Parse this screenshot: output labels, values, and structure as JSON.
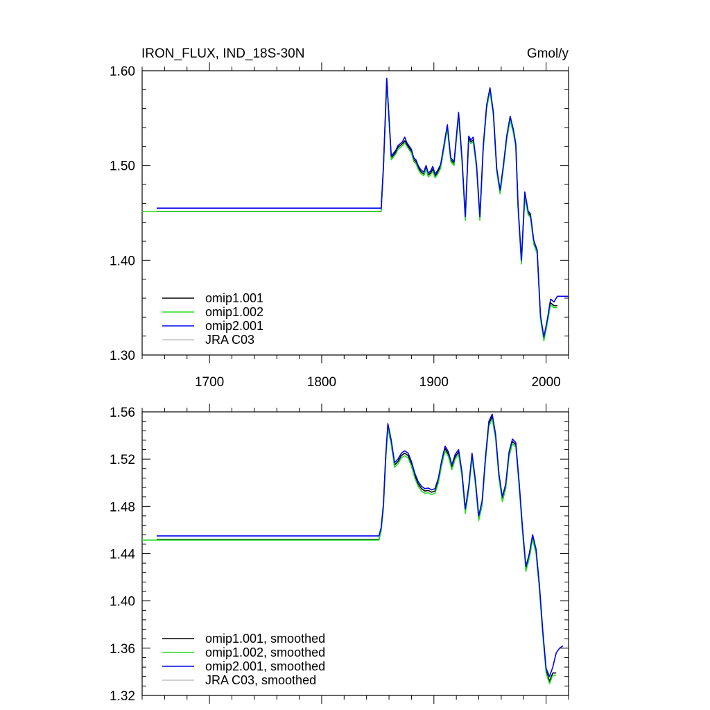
{
  "title_left": "IRON_FLUX, IND_18S-30N",
  "title_right": "Gmol/y",
  "colors": {
    "omip1_001": "#000000",
    "omip1_002": "#22dd22",
    "omip2_001": "#0000ee",
    "jra_c03": "#c0c0c0"
  },
  "chart_data": [
    {
      "type": "line",
      "xlim": [
        1640,
        2020
      ],
      "ylim": [
        1.3,
        1.6
      ],
      "x_ticks": [
        "1700",
        "1800",
        "1900",
        "2000"
      ],
      "y_ticks": [
        "1.30",
        "1.40",
        "1.50",
        "1.60"
      ],
      "legend_placement": "bottom-left",
      "series": [
        {
          "name": "omip1.001",
          "color_key": "omip1_001",
          "x": [
            1653,
            1853,
            1855,
            1858,
            1862,
            1866,
            1868,
            1872,
            1874,
            1876,
            1880,
            1882,
            1884,
            1886,
            1888,
            1891,
            1893,
            1895,
            1897,
            1899,
            1901,
            1903,
            1906,
            1909,
            1912,
            1915,
            1918,
            1922,
            1925,
            1928,
            1931,
            1933,
            1935,
            1938,
            1941,
            1944,
            1947,
            1950,
            1953,
            1956,
            1959,
            1962,
            1965,
            1968,
            1971,
            1973,
            1975,
            1978,
            1981,
            1984,
            1986,
            1989,
            1992,
            1995,
            1998,
            2001,
            2004,
            2007,
            2010
          ],
          "y": [
            1.4515,
            1.4515,
            1.497,
            1.59,
            1.508,
            1.514,
            1.519,
            1.523,
            1.526,
            1.522,
            1.515,
            1.506,
            1.504,
            1.498,
            1.494,
            1.491,
            1.498,
            1.49,
            1.492,
            1.496,
            1.489,
            1.492,
            1.499,
            1.52,
            1.541,
            1.506,
            1.502,
            1.554,
            1.506,
            1.444,
            1.529,
            1.525,
            1.527,
            1.499,
            1.444,
            1.519,
            1.562,
            1.58,
            1.554,
            1.495,
            1.472,
            1.499,
            1.53,
            1.55,
            1.535,
            1.521,
            1.456,
            1.398,
            1.468,
            1.45,
            1.447,
            1.419,
            1.409,
            1.34,
            1.317,
            1.335,
            1.355,
            1.352,
            1.352
          ]
        },
        {
          "name": "omip1.002",
          "color_key": "omip1_002",
          "x": [
            1640,
            1853,
            1855,
            1858,
            1862,
            1866,
            1868,
            1872,
            1874,
            1876,
            1880,
            1882,
            1884,
            1886,
            1888,
            1891,
            1893,
            1895,
            1897,
            1899,
            1901,
            1903,
            1906,
            1909,
            1912,
            1915,
            1918,
            1922,
            1925,
            1928,
            1931,
            1933,
            1935,
            1938,
            1941,
            1944,
            1947,
            1950,
            1953,
            1956,
            1959,
            1962,
            1965,
            1968,
            1971,
            1973,
            1975,
            1978,
            1981,
            1984,
            1986,
            1989,
            1992,
            1995,
            1998,
            2001,
            2004,
            2007,
            2010
          ],
          "y": [
            1.4515,
            1.4515,
            1.496,
            1.588,
            1.506,
            1.512,
            1.517,
            1.521,
            1.524,
            1.52,
            1.513,
            1.504,
            1.502,
            1.496,
            1.492,
            1.489,
            1.496,
            1.488,
            1.49,
            1.494,
            1.487,
            1.49,
            1.497,
            1.518,
            1.539,
            1.504,
            1.5,
            1.552,
            1.504,
            1.442,
            1.527,
            1.523,
            1.525,
            1.497,
            1.442,
            1.517,
            1.56,
            1.578,
            1.552,
            1.493,
            1.47,
            1.497,
            1.528,
            1.548,
            1.533,
            1.519,
            1.454,
            1.396,
            1.466,
            1.448,
            1.445,
            1.417,
            1.407,
            1.338,
            1.315,
            1.333,
            1.353,
            1.35,
            1.35
          ]
        },
        {
          "name": "omip2.001",
          "color_key": "omip2_001",
          "x": [
            1653,
            1853,
            1855,
            1858,
            1862,
            1866,
            1868,
            1872,
            1874,
            1876,
            1880,
            1882,
            1884,
            1886,
            1888,
            1891,
            1893,
            1895,
            1897,
            1899,
            1901,
            1903,
            1906,
            1909,
            1912,
            1915,
            1918,
            1922,
            1925,
            1928,
            1931,
            1933,
            1935,
            1938,
            1941,
            1944,
            1947,
            1950,
            1953,
            1956,
            1959,
            1962,
            1965,
            1968,
            1971,
            1973,
            1975,
            1978,
            1981,
            1984,
            1986,
            1989,
            1992,
            1995,
            1998,
            2001,
            2004,
            2007,
            2010,
            2012,
            2020
          ],
          "y": [
            1.455,
            1.455,
            1.499,
            1.592,
            1.51,
            1.516,
            1.521,
            1.525,
            1.53,
            1.524,
            1.517,
            1.508,
            1.506,
            1.5,
            1.496,
            1.493,
            1.5,
            1.492,
            1.494,
            1.499,
            1.491,
            1.494,
            1.501,
            1.522,
            1.543,
            1.508,
            1.504,
            1.556,
            1.508,
            1.446,
            1.531,
            1.527,
            1.53,
            1.501,
            1.446,
            1.521,
            1.564,
            1.582,
            1.556,
            1.497,
            1.474,
            1.501,
            1.532,
            1.552,
            1.537,
            1.523,
            1.458,
            1.4,
            1.472,
            1.452,
            1.449,
            1.421,
            1.411,
            1.342,
            1.319,
            1.337,
            1.359,
            1.356,
            1.362,
            1.362,
            1.362
          ]
        },
        {
          "name": "JRA C03",
          "color_key": "jra_c03",
          "x": [],
          "y": []
        }
      ]
    },
    {
      "type": "line",
      "xlim": [
        1640,
        2020
      ],
      "ylim": [
        1.32,
        1.56
      ],
      "x_ticks": [],
      "y_ticks": [
        "1.32",
        "1.36",
        "1.40",
        "1.44",
        "1.48",
        "1.52",
        "1.56"
      ],
      "legend_placement": "bottom-left",
      "series": [
        {
          "name": "omip1.001, smoothed",
          "color_key": "omip1_001",
          "x": [
            1653,
            1851,
            1853,
            1855,
            1857,
            1859,
            1862,
            1865,
            1868,
            1871,
            1874,
            1877,
            1880,
            1883,
            1886,
            1889,
            1892,
            1895,
            1898,
            1901,
            1904,
            1907,
            1910,
            1913,
            1916,
            1919,
            1922,
            1925,
            1928,
            1931,
            1934,
            1937,
            1940,
            1943,
            1946,
            1949,
            1952,
            1955,
            1958,
            1961,
            1964,
            1967,
            1970,
            1973,
            1976,
            1979,
            1982,
            1985,
            1988,
            1991,
            1994,
            1997,
            2000,
            2003,
            2006,
            2009
          ],
          "y": [
            1.452,
            1.452,
            1.46,
            1.48,
            1.52,
            1.548,
            1.534,
            1.515,
            1.518,
            1.523,
            1.525,
            1.523,
            1.516,
            1.506,
            1.499,
            1.495,
            1.493,
            1.4935,
            1.492,
            1.493,
            1.502,
            1.517,
            1.529,
            1.524,
            1.513,
            1.522,
            1.526,
            1.507,
            1.476,
            1.495,
            1.523,
            1.5,
            1.47,
            1.483,
            1.52,
            1.55,
            1.556,
            1.539,
            1.505,
            1.486,
            1.497,
            1.524,
            1.535,
            1.532,
            1.498,
            1.46,
            1.427,
            1.438,
            1.454,
            1.442,
            1.412,
            1.373,
            1.341,
            1.332,
            1.339,
            1.339
          ]
        },
        {
          "name": "omip1.002, smoothed",
          "color_key": "omip1_002",
          "x": [
            1640,
            1851,
            1853,
            1855,
            1857,
            1859,
            1862,
            1865,
            1868,
            1871,
            1874,
            1877,
            1880,
            1883,
            1886,
            1889,
            1892,
            1895,
            1898,
            1901,
            1904,
            1907,
            1910,
            1913,
            1916,
            1919,
            1922,
            1925,
            1928,
            1931,
            1934,
            1937,
            1940,
            1943,
            1946,
            1949,
            1952,
            1955,
            1958,
            1961,
            1964,
            1967,
            1970,
            1973,
            1976,
            1979,
            1982,
            1985,
            1988,
            1991,
            1994,
            1997,
            2000,
            2003,
            2006,
            2009
          ],
          "y": [
            1.4515,
            1.4515,
            1.459,
            1.478,
            1.518,
            1.546,
            1.532,
            1.513,
            1.516,
            1.521,
            1.523,
            1.521,
            1.514,
            1.504,
            1.497,
            1.493,
            1.491,
            1.4915,
            1.49,
            1.491,
            1.5,
            1.515,
            1.527,
            1.522,
            1.511,
            1.52,
            1.524,
            1.505,
            1.474,
            1.493,
            1.521,
            1.498,
            1.468,
            1.481,
            1.518,
            1.548,
            1.554,
            1.537,
            1.503,
            1.484,
            1.495,
            1.522,
            1.533,
            1.53,
            1.496,
            1.458,
            1.425,
            1.436,
            1.452,
            1.44,
            1.41,
            1.371,
            1.339,
            1.33,
            1.337,
            1.337
          ]
        },
        {
          "name": "omip2.001, smoothed",
          "color_key": "omip2_001",
          "x": [
            1653,
            1851,
            1853,
            1855,
            1857,
            1859,
            1862,
            1865,
            1868,
            1871,
            1874,
            1877,
            1880,
            1883,
            1886,
            1889,
            1892,
            1895,
            1898,
            1901,
            1904,
            1907,
            1910,
            1913,
            1916,
            1919,
            1922,
            1925,
            1928,
            1931,
            1934,
            1937,
            1940,
            1943,
            1946,
            1949,
            1952,
            1955,
            1958,
            1961,
            1964,
            1967,
            1970,
            1973,
            1976,
            1979,
            1982,
            1985,
            1988,
            1991,
            1994,
            1997,
            2000,
            2003,
            2006,
            2009,
            2012,
            2015
          ],
          "y": [
            1.455,
            1.455,
            1.462,
            1.482,
            1.522,
            1.55,
            1.536,
            1.517,
            1.52,
            1.525,
            1.527,
            1.525,
            1.518,
            1.508,
            1.501,
            1.497,
            1.495,
            1.4955,
            1.494,
            1.495,
            1.504,
            1.519,
            1.531,
            1.526,
            1.515,
            1.524,
            1.528,
            1.509,
            1.478,
            1.497,
            1.525,
            1.502,
            1.472,
            1.485,
            1.522,
            1.552,
            1.558,
            1.541,
            1.507,
            1.488,
            1.499,
            1.526,
            1.537,
            1.534,
            1.5,
            1.462,
            1.429,
            1.44,
            1.456,
            1.444,
            1.414,
            1.375,
            1.343,
            1.336,
            1.344,
            1.356,
            1.36,
            1.362
          ]
        },
        {
          "name": "JRA C03, smoothed",
          "color_key": "jra_c03",
          "x": [],
          "y": []
        }
      ]
    }
  ]
}
